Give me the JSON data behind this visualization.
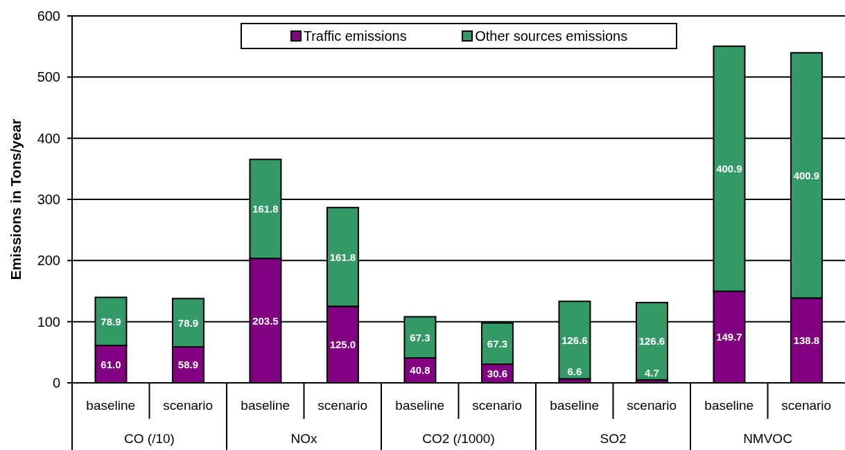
{
  "chart_data": {
    "type": "bar",
    "ylabel": "Emissions in Tons/year",
    "categories": [
      "baseline",
      "scenario",
      "baseline",
      "scenario",
      "baseline",
      "scenario",
      "baseline",
      "scenario",
      "baseline",
      "scenario"
    ],
    "annotations": [
      "CO (/10)",
      "NOx",
      "CO2 (/1000)",
      "SO2",
      "NMVOC"
    ],
    "stacked": true,
    "series": [
      {
        "name": "Traffic emissions",
        "color": "#800080",
        "values": [
          61.0,
          58.9,
          203.5,
          125.0,
          40.8,
          30.6,
          6.6,
          4.7,
          149.7,
          138.8
        ],
        "value_labels": [
          "61.0",
          "58.9",
          "203.5",
          "125.0",
          "40.8",
          "30.6",
          "6.6",
          "4.7",
          "149.7",
          "138.8"
        ]
      },
      {
        "name": "Other sources emissions",
        "color": "#339966",
        "values": [
          78.9,
          78.9,
          161.8,
          161.8,
          67.3,
          67.3,
          126.6,
          126.6,
          400.9,
          400.9
        ],
        "value_labels": [
          "78.9",
          "78.9",
          "161.8",
          "161.8",
          "67.3",
          "67.3",
          "126.6",
          "126.6",
          "400.9",
          "400.9"
        ]
      }
    ],
    "ylim": [
      0,
      600
    ],
    "yticks": [
      0,
      100,
      200,
      300,
      400,
      500,
      600
    ],
    "grid": "y",
    "legend": "top"
  }
}
